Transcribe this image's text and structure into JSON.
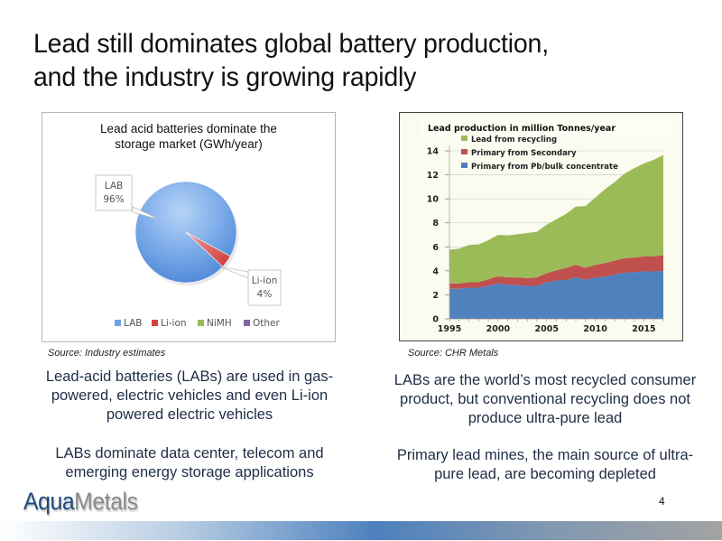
{
  "slide": {
    "title_line1": "Lead still dominates global battery production,",
    "title_line2": "and the industry is growing rapidly",
    "page_number": "4",
    "logo": {
      "part1": "Aqua",
      "part2": "Metals"
    },
    "left": {
      "source": "Source:  Industry estimates",
      "text1": "Lead-acid batteries (LABs) are used in gas-powered, electric vehicles and even Li-ion powered electric vehicles",
      "text2": "LABs dominate data center, telecom and emerging energy storage applications"
    },
    "right": {
      "source": "Source:  CHR Metals",
      "text1": "LABs are the world’s most recycled consumer product, but conventional recycling does not produce ultra-pure lead",
      "text2": "Primary lead mines, the main source of ultra-pure lead, are becoming depleted"
    }
  },
  "chart_data": [
    {
      "type": "pie",
      "title": "Lead acid batteries dominate the storage market (GWh/year)",
      "title_line1": "Lead acid batteries dominate the",
      "title_line2": "storage market (GWh/year)",
      "slices": [
        {
          "label": "LAB",
          "value": 96,
          "color": "#6fa3e8",
          "data_label_line1": "LAB",
          "data_label_line2": "96%"
        },
        {
          "label": "Li-ion",
          "value": 4,
          "color": "#d9423f",
          "data_label_line1": "Li-ion",
          "data_label_line2": "4%"
        },
        {
          "label": "NiMH",
          "value": 0,
          "color": "#9bbb59"
        },
        {
          "label": "Other",
          "value": 0,
          "color": "#8064a2"
        }
      ],
      "legend": [
        "LAB",
        "Li-ion",
        "NiMH",
        "Other"
      ],
      "legend_position": "bottom"
    },
    {
      "type": "area",
      "stacked": true,
      "title": "Lead production in million Tonnes/year",
      "x": [
        1995,
        1996,
        1997,
        1998,
        1999,
        2000,
        2001,
        2002,
        2003,
        2004,
        2005,
        2006,
        2007,
        2008,
        2009,
        2010,
        2011,
        2012,
        2013,
        2014,
        2015,
        2016,
        2017
      ],
      "x_ticks": [
        1995,
        2000,
        2005,
        2010,
        2015
      ],
      "y_ticks": [
        0,
        2,
        4,
        6,
        8,
        10,
        12,
        14
      ],
      "ylim": [
        0,
        14.5
      ],
      "grid": true,
      "legend_position": "top-left",
      "series": [
        {
          "name": "Primary from Pb/bulk concentrate",
          "color": "#4f81bd",
          "values": [
            2.5,
            2.5,
            2.6,
            2.6,
            2.75,
            2.95,
            2.85,
            2.8,
            2.75,
            2.75,
            3.05,
            3.2,
            3.25,
            3.45,
            3.25,
            3.45,
            3.5,
            3.7,
            3.85,
            3.9,
            3.95,
            3.95,
            4.0
          ]
        },
        {
          "name": "Primary from Secondary",
          "color": "#c0504d",
          "values": [
            0.45,
            0.45,
            0.45,
            0.45,
            0.55,
            0.6,
            0.6,
            0.65,
            0.65,
            0.7,
            0.75,
            0.85,
            1.0,
            1.05,
            1.0,
            1.05,
            1.15,
            1.15,
            1.2,
            1.2,
            1.25,
            1.25,
            1.3
          ]
        },
        {
          "name": "Lead from recycling",
          "color": "#9bbb59",
          "values": [
            2.8,
            2.9,
            3.1,
            3.15,
            3.25,
            3.45,
            3.5,
            3.6,
            3.75,
            3.8,
            4.05,
            4.25,
            4.5,
            4.85,
            5.15,
            5.6,
            6.15,
            6.55,
            7.05,
            7.45,
            7.75,
            8.05,
            8.35
          ]
        }
      ],
      "legend": [
        "Lead from recycling",
        "Primary from Secondary",
        "Primary from Pb/bulk concentrate"
      ]
    }
  ]
}
